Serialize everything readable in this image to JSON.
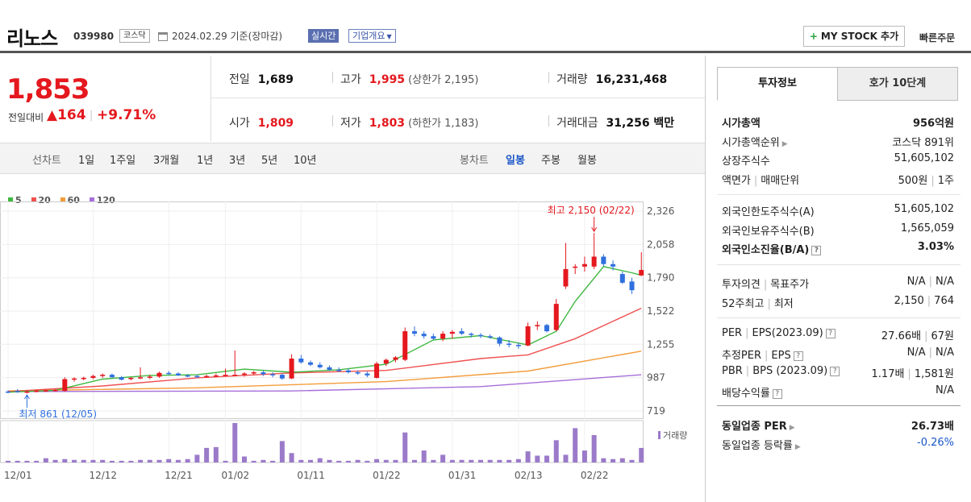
{
  "header": {
    "name": "리노스",
    "code": "039980",
    "market": "코스닥",
    "base_date": "2024.02.29 기준(장마감)",
    "realtime": "실시간",
    "company_info": "기업개요",
    "mystock": "MY STOCK 추가",
    "quick_order": "빠른주문"
  },
  "price": {
    "current": "1,853",
    "change_label": "전일대비",
    "change_value": "164",
    "change_pct": "+9.71%"
  },
  "summary": {
    "prev_close_label": "전일",
    "prev_close": "1,689",
    "high_label": "고가",
    "high": "1,995",
    "upper_limit": "(상한가 2,195)",
    "volume_label": "거래량",
    "volume": "16,231,468",
    "open_label": "시가",
    "open": "1,809",
    "low_label": "저가",
    "low": "1,803",
    "lower_limit": "(하한가 1,183)",
    "amount_label": "거래대금",
    "amount": "31,256 백만"
  },
  "toolbar": {
    "line_label": "선차트",
    "periods": [
      "1일",
      "1주일",
      "3개월",
      "1년",
      "3년",
      "5년",
      "10년"
    ],
    "candle_label": "봉차트",
    "candle_periods": [
      "일봉",
      "주봉",
      "월봉"
    ],
    "selected_candle": "일봉"
  },
  "colors": {
    "up": "#e4181e",
    "down": "#2f6fde",
    "ma5": "#3fb83f",
    "ma20": "#f05050",
    "ma60": "#f39c3a",
    "ma120": "#a66ed9"
  },
  "chart_data": {
    "type": "candlestick",
    "legend": [
      {
        "name": "5",
        "color": "#3fb83f"
      },
      {
        "name": "20",
        "color": "#f05050"
      },
      {
        "name": "60",
        "color": "#f39c3a"
      },
      {
        "name": "120",
        "color": "#a66ed9"
      }
    ],
    "y_ticks": [
      "2,326",
      "2,058",
      "1,790",
      "1,522",
      "1,255",
      "987",
      "719"
    ],
    "ylim": [
      719,
      2326
    ],
    "x_ticks": [
      "12/01",
      "12/12",
      "12/21",
      "01/02",
      "01/11",
      "01/22",
      "01/31",
      "02/13",
      "02/22"
    ],
    "max_annotation": "최고 2,150 (02/22)",
    "min_annotation": "최저 861 (12/05)",
    "volume_label": "거래량",
    "candles": [
      {
        "o": 875,
        "h": 885,
        "l": 862,
        "c": 868
      },
      {
        "o": 880,
        "h": 895,
        "l": 865,
        "c": 870
      },
      {
        "o": 870,
        "h": 885,
        "l": 861,
        "c": 875
      },
      {
        "o": 875,
        "h": 890,
        "l": 868,
        "c": 882
      },
      {
        "o": 880,
        "h": 895,
        "l": 872,
        "c": 885
      },
      {
        "o": 885,
        "h": 895,
        "l": 875,
        "c": 888
      },
      {
        "o": 880,
        "h": 990,
        "l": 875,
        "c": 975
      },
      {
        "o": 970,
        "h": 990,
        "l": 955,
        "c": 980
      },
      {
        "o": 975,
        "h": 995,
        "l": 965,
        "c": 985
      },
      {
        "o": 985,
        "h": 1010,
        "l": 975,
        "c": 1000
      },
      {
        "o": 1000,
        "h": 1020,
        "l": 985,
        "c": 1010
      },
      {
        "o": 1010,
        "h": 1020,
        "l": 985,
        "c": 990
      },
      {
        "o": 990,
        "h": 1000,
        "l": 965,
        "c": 970
      },
      {
        "o": 975,
        "h": 990,
        "l": 965,
        "c": 985
      },
      {
        "o": 985,
        "h": 1070,
        "l": 975,
        "c": 990
      },
      {
        "o": 990,
        "h": 1010,
        "l": 975,
        "c": 995
      },
      {
        "o": 995,
        "h": 1035,
        "l": 985,
        "c": 1025
      },
      {
        "o": 1025,
        "h": 1040,
        "l": 1010,
        "c": 1020
      },
      {
        "o": 1020,
        "h": 1030,
        "l": 1000,
        "c": 1005
      },
      {
        "o": 1005,
        "h": 1015,
        "l": 990,
        "c": 1000
      },
      {
        "o": 1000,
        "h": 1010,
        "l": 985,
        "c": 995
      },
      {
        "o": 995,
        "h": 1010,
        "l": 985,
        "c": 1000
      },
      {
        "o": 1000,
        "h": 1020,
        "l": 990,
        "c": 1005
      },
      {
        "o": 1005,
        "h": 1060,
        "l": 1000,
        "c": 1010
      },
      {
        "o": 1010,
        "h": 1205,
        "l": 1000,
        "c": 1010
      },
      {
        "o": 1010,
        "h": 1030,
        "l": 995,
        "c": 1020
      },
      {
        "o": 1020,
        "h": 1040,
        "l": 1010,
        "c": 1030
      },
      {
        "o": 1030,
        "h": 1045,
        "l": 1000,
        "c": 1015
      },
      {
        "o": 1015,
        "h": 1030,
        "l": 990,
        "c": 1010
      },
      {
        "o": 1010,
        "h": 1020,
        "l": 970,
        "c": 980
      },
      {
        "o": 980,
        "h": 1175,
        "l": 975,
        "c": 1140
      },
      {
        "o": 1140,
        "h": 1170,
        "l": 1100,
        "c": 1110
      },
      {
        "o": 1110,
        "h": 1125,
        "l": 1080,
        "c": 1090
      },
      {
        "o": 1090,
        "h": 1110,
        "l": 1060,
        "c": 1070
      },
      {
        "o": 1070,
        "h": 1085,
        "l": 1040,
        "c": 1050
      },
      {
        "o": 1050,
        "h": 1070,
        "l": 1030,
        "c": 1045
      },
      {
        "o": 1045,
        "h": 1060,
        "l": 1020,
        "c": 1030
      },
      {
        "o": 1030,
        "h": 1045,
        "l": 1010,
        "c": 1020
      },
      {
        "o": 1020,
        "h": 1035,
        "l": 990,
        "c": 1005
      },
      {
        "o": 985,
        "h": 1115,
        "l": 980,
        "c": 1100
      },
      {
        "o": 1100,
        "h": 1140,
        "l": 1080,
        "c": 1130
      },
      {
        "o": 1130,
        "h": 1160,
        "l": 1110,
        "c": 1150
      },
      {
        "o": 1130,
        "h": 1390,
        "l": 1120,
        "c": 1360
      },
      {
        "o": 1360,
        "h": 1400,
        "l": 1320,
        "c": 1340
      },
      {
        "o": 1340,
        "h": 1360,
        "l": 1300,
        "c": 1320
      },
      {
        "o": 1320,
        "h": 1340,
        "l": 1290,
        "c": 1300
      },
      {
        "o": 1300,
        "h": 1360,
        "l": 1280,
        "c": 1340
      },
      {
        "o": 1340,
        "h": 1370,
        "l": 1300,
        "c": 1355
      },
      {
        "o": 1360,
        "h": 1385,
        "l": 1330,
        "c": 1340
      },
      {
        "o": 1340,
        "h": 1350,
        "l": 1310,
        "c": 1330
      },
      {
        "o": 1330,
        "h": 1345,
        "l": 1305,
        "c": 1320
      },
      {
        "o": 1320,
        "h": 1335,
        "l": 1300,
        "c": 1310
      },
      {
        "o": 1310,
        "h": 1320,
        "l": 1240,
        "c": 1260
      },
      {
        "o": 1260,
        "h": 1290,
        "l": 1230,
        "c": 1250
      },
      {
        "o": 1250,
        "h": 1270,
        "l": 1220,
        "c": 1240
      },
      {
        "o": 1245,
        "h": 1430,
        "l": 1240,
        "c": 1400
      },
      {
        "o": 1400,
        "h": 1440,
        "l": 1370,
        "c": 1410
      },
      {
        "o": 1410,
        "h": 1420,
        "l": 1350,
        "c": 1360
      },
      {
        "o": 1370,
        "h": 1620,
        "l": 1360,
        "c": 1580
      },
      {
        "o": 1720,
        "h": 2070,
        "l": 1700,
        "c": 1860
      },
      {
        "o": 1870,
        "h": 1900,
        "l": 1820,
        "c": 1880
      },
      {
        "o": 1880,
        "h": 1960,
        "l": 1840,
        "c": 1900
      },
      {
        "o": 1880,
        "h": 2150,
        "l": 1860,
        "c": 1960
      },
      {
        "o": 1960,
        "h": 1980,
        "l": 1880,
        "c": 1900
      },
      {
        "o": 1900,
        "h": 1930,
        "l": 1850,
        "c": 1880
      },
      {
        "o": 1820,
        "h": 1840,
        "l": 1740,
        "c": 1750
      },
      {
        "o": 1760,
        "h": 1790,
        "l": 1660,
        "c": 1690
      },
      {
        "o": 1809,
        "h": 1995,
        "l": 1803,
        "c": 1853
      }
    ],
    "volumes": [
      2,
      2,
      2,
      2,
      5,
      3,
      4,
      3,
      3,
      3,
      3,
      2,
      2,
      2,
      3,
      3,
      3,
      4,
      3,
      4,
      9,
      17,
      18,
      2,
      46,
      7,
      2,
      3,
      2,
      25,
      11,
      3,
      3,
      5,
      3,
      2,
      2,
      3,
      2,
      4,
      3,
      3,
      35,
      3,
      14,
      3,
      9,
      3,
      3,
      3,
      3,
      3,
      3,
      3,
      4,
      13,
      8,
      8,
      26,
      9,
      40,
      14,
      32,
      5,
      4,
      5,
      3,
      17
    ],
    "ma5_level_points": [
      [
        0,
        870
      ],
      [
        5,
        885
      ],
      [
        10,
        975
      ],
      [
        15,
        1005
      ],
      [
        20,
        1010
      ],
      [
        25,
        1055
      ],
      [
        30,
        1030
      ],
      [
        35,
        1050
      ],
      [
        40,
        1095
      ],
      [
        45,
        1290
      ],
      [
        50,
        1325
      ],
      [
        55,
        1250
      ],
      [
        58,
        1360
      ],
      [
        60,
        1600
      ],
      [
        63,
        1880
      ],
      [
        66,
        1830
      ],
      [
        67,
        1810
      ]
    ],
    "ma20_level_points": [
      [
        0,
        875
      ],
      [
        10,
        920
      ],
      [
        20,
        985
      ],
      [
        30,
        1025
      ],
      [
        40,
        1045
      ],
      [
        50,
        1140
      ],
      [
        55,
        1170
      ],
      [
        60,
        1300
      ],
      [
        67,
        1545
      ]
    ],
    "ma60_level_points": [
      [
        0,
        880
      ],
      [
        20,
        905
      ],
      [
        40,
        955
      ],
      [
        55,
        1040
      ],
      [
        67,
        1200
      ]
    ],
    "ma120_level_points": [
      [
        0,
        875
      ],
      [
        30,
        880
      ],
      [
        50,
        915
      ],
      [
        67,
        1010
      ]
    ]
  },
  "invest": {
    "tab_active": "투자정보",
    "tab_inactive": "호가 10단계",
    "market_cap_label": "시가총액",
    "market_cap": "956억원",
    "market_cap_rank_label": "시가총액순위",
    "market_cap_rank": "코스닥 891위",
    "listed_shares_label": "상장주식수",
    "listed_shares": "51,605,102",
    "face_value_label": "액면가",
    "trade_unit_label": "매매단위",
    "face_value": "500원",
    "trade_unit": "1주",
    "foreign_limit_label": "외국인한도주식수(A)",
    "foreign_limit": "51,605,102",
    "foreign_hold_label": "외국인보유주식수(B)",
    "foreign_hold": "1,565,059",
    "foreign_ratio_label": "외국인소진율(B/A)",
    "foreign_ratio": "3.03%",
    "opinion_label": "투자의견",
    "target_label": "목표주가",
    "opinion": "N/A",
    "target": "N/A",
    "high52_label": "52주최고",
    "low52_label": "최저",
    "high52": "2,150",
    "low52": "764",
    "per_label": "PER",
    "eps_label": "EPS(2023.09)",
    "per": "27.66배",
    "eps": "67원",
    "est_per_label": "추정PER",
    "est_eps_label": "EPS",
    "est_per": "N/A",
    "est_eps": "N/A",
    "pbr_label": "PBR",
    "bps_label": "BPS (2023.09)",
    "pbr": "1.17배",
    "bps": "1,581원",
    "div_label": "배당수익률",
    "div": "N/A",
    "ind_per_label": "동일업종 PER",
    "ind_per": "26.73배",
    "ind_rate_label": "동일업종 등락률",
    "ind_rate": "-0.26%"
  }
}
